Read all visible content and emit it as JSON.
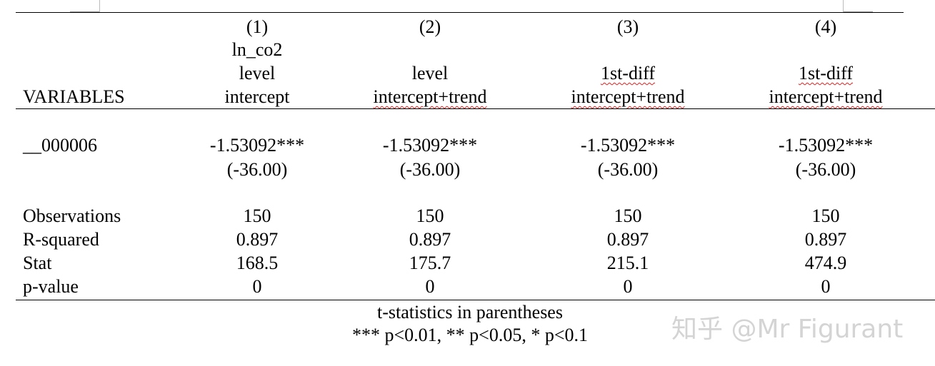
{
  "table": {
    "header": {
      "variables_label": "VARIABLES",
      "columns": [
        {
          "number": "(1)",
          "lines": [
            "ln_co2",
            "level",
            "intercept"
          ]
        },
        {
          "number": "(2)",
          "lines": [
            "level",
            "intercept+trend"
          ]
        },
        {
          "number": "(3)",
          "lines": [
            "1st-diff",
            "intercept+trend"
          ]
        },
        {
          "number": "(4)",
          "lines": [
            "1st-diff",
            "intercept+trend"
          ]
        }
      ]
    },
    "coef_rows": [
      {
        "label": "__000006",
        "values": [
          "-1.53092***",
          "-1.53092***",
          "-1.53092***",
          "-1.53092***"
        ],
        "tstats": [
          "(-36.00)",
          "(-36.00)",
          "(-36.00)",
          "(-36.00)"
        ]
      }
    ],
    "stat_rows": [
      {
        "label": "Observations",
        "values": [
          150,
          150,
          150,
          150
        ]
      },
      {
        "label": "R-squared",
        "values": [
          0.897,
          0.897,
          0.897,
          0.897
        ]
      },
      {
        "label": "Stat",
        "values": [
          168.5,
          175.7,
          215.1,
          474.9
        ]
      },
      {
        "label": "p-value",
        "values": [
          0,
          0,
          0,
          0
        ]
      }
    ],
    "notes": [
      "t-statistics in parentheses",
      "*** p<0.01, ** p<0.05, * p<0.1"
    ]
  },
  "watermark": "知乎 @Mr Figurant"
}
